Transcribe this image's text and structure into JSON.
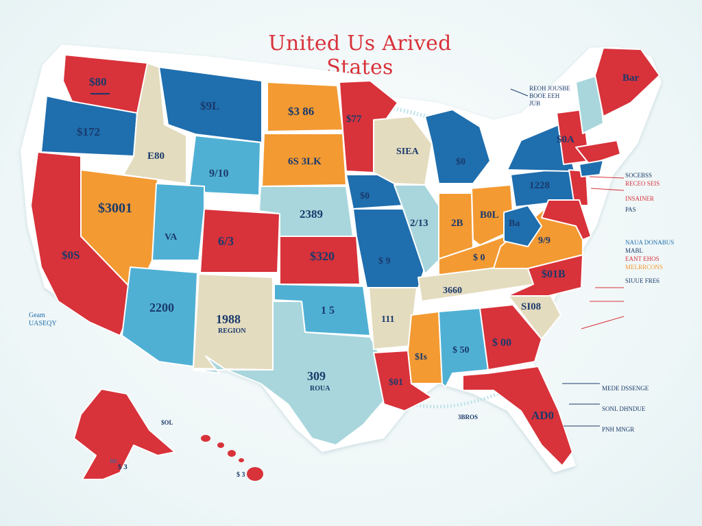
{
  "title": "United Us Arived States",
  "colors": {
    "red": "#d8323a",
    "blue": "#1f6eae",
    "light_blue": "#4fb0d4",
    "orange": "#f39a33",
    "beige": "#e4dcbf",
    "pale_blue": "#a8d6dc",
    "text": "#1a3a6b",
    "water": "#bfe3ea"
  },
  "state_labels": {
    "wa": "$80",
    "or": "$172",
    "mt": "$9L",
    "id": "E80",
    "nd": "$3 86",
    "mn": "$77",
    "sd": "6S 3LK",
    "wi": "SIEA",
    "wy": "9/10",
    "nv": "$3001",
    "ut": "VA",
    "ca": "$0S",
    "co": "6/3",
    "ne": "2389",
    "ks": "$320",
    "ia": "$0",
    "il": "2/13",
    "mo": "$ 9",
    "in": "2B",
    "oh": "B0L",
    "ny": "1228",
    "me": "Bar",
    "vt_nh": "$0A",
    "wv": "Ba",
    "va": "9/9",
    "mi": "$0",
    "az": "2200",
    "nm": "1988",
    "nm_sub": "REGION",
    "ok": "1 5",
    "tx": "309",
    "tx_sub": "ROUA",
    "ar": "111",
    "tn": "3660",
    "ky": "$ 0",
    "nc": "$01B",
    "sc": "SI08",
    "ga": "$ 00",
    "al": "$ 50",
    "ms": "$Is",
    "la": "$01",
    "fl": "AD0",
    "ak": "$ 3",
    "hi": "$ 3"
  },
  "side_labels": {
    "west": [
      "Geam",
      "UASEQY"
    ],
    "ne_top": [
      "REOH JOUSBE",
      "BOOE EEH",
      "JUB"
    ],
    "east_list": [
      "SOCEBSS",
      "RECEO SEIS",
      "INSAINER",
      "PAS",
      "NAUA DONABUS",
      "MABL",
      "EANT EHOS",
      "MELRRCONS",
      "SIUUE FRE6"
    ],
    "south_list": [
      "MEDE DSSENGE",
      "SONL DHNDUE",
      "PNH MNGR"
    ],
    "gulf": "3BROS",
    "pacific": "$OL",
    "hi_note": "BB"
  }
}
